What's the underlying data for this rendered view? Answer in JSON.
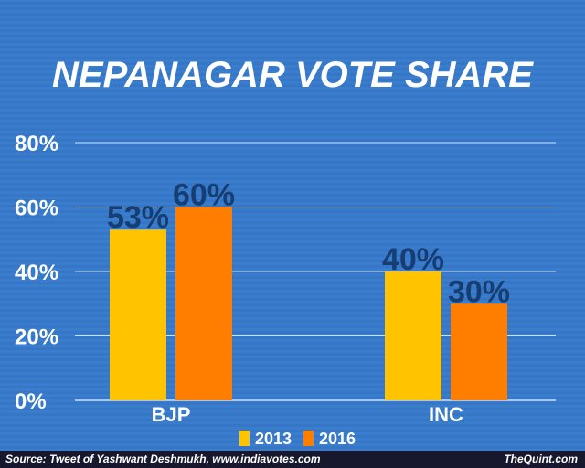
{
  "chart_data": {
    "type": "bar",
    "title": "NEPANAGAR VOTE SHARE",
    "categories": [
      "BJP",
      "INC"
    ],
    "series": [
      {
        "name": "2013",
        "values": [
          53,
          40
        ],
        "labels": [
          "53%",
          "40%"
        ],
        "color": "#ffc300"
      },
      {
        "name": "2016",
        "values": [
          60,
          30
        ],
        "labels": [
          "60%",
          "30%"
        ],
        "color": "#ff7e00"
      }
    ],
    "ylim": [
      0,
      80
    ],
    "yticks": [
      0,
      20,
      40,
      60,
      80
    ],
    "ytick_labels": [
      "0%",
      "20%",
      "40%",
      "60%",
      "80%"
    ],
    "grid": true,
    "legend_position": "bottom-center"
  },
  "colors": {
    "background": "#3a7dcc",
    "data_label": "#163e72",
    "footer": "#17172e"
  },
  "footer": {
    "source": "Source: Tweet of Yashwant Deshmukh, www.indiavotes.com",
    "brand": "TheQuint.com"
  }
}
